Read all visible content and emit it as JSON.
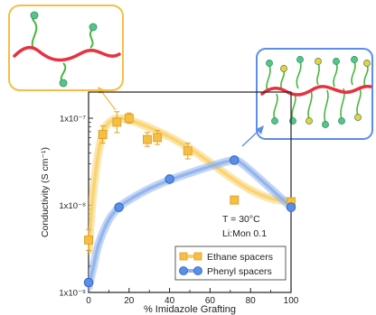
{
  "chart_data": {
    "type": "line",
    "xlabel": "% Imidazole Grafting",
    "ylabel": "Conductivity (S cm⁻¹)",
    "x_ticks": [
      "0",
      "20",
      "40",
      "60",
      "80",
      "100"
    ],
    "y_ticks": [
      "1x10⁻⁹",
      "1x10⁻⁸",
      "1x10⁻⁷"
    ],
    "xlim": [
      0,
      100
    ],
    "ylim_log10": [
      -9,
      -6.7
    ],
    "y_scale": "log",
    "annotations": {
      "temperature": "T = 30°C",
      "ratio": "Li:Mon 0.1"
    },
    "legend_position": "bottom-right",
    "series": [
      {
        "name": "Ethane spacers",
        "color": "#f6be45",
        "marker": "square",
        "x": [
          0,
          7,
          14,
          20,
          29,
          34,
          49,
          72,
          100
        ],
        "y": [
          4e-09,
          6.5e-08,
          9e-08,
          1e-07,
          5.7e-08,
          6e-08,
          4.2e-08,
          1.15e-08,
          1.1e-08
        ],
        "y_err": [
          0.12,
          0.1,
          0.12,
          0.06,
          0.08,
          0.08,
          0.09,
          0.03,
          0.03
        ]
      },
      {
        "name": "Phenyl spacers",
        "color": "#5b8ee6",
        "marker": "circle",
        "x": [
          0,
          15,
          40,
          72,
          100
        ],
        "y": [
          1.3e-09,
          9.5e-09,
          2e-08,
          3.3e-08,
          9.5e-09
        ]
      }
    ],
    "fits": [
      {
        "series": "Ethane spacers",
        "color": "#f8d26a",
        "x": [
          0,
          2,
          5,
          8,
          12,
          16,
          20,
          25,
          30,
          40,
          50,
          60,
          70,
          80,
          90,
          100
        ],
        "y": [
          3e-09,
          1.2e-08,
          4.2e-08,
          7.6e-08,
          9.6e-08,
          9.9e-08,
          9.6e-08,
          8.7e-08,
          7.8e-08,
          6.1e-08,
          4.5e-08,
          3.1e-08,
          2.1e-08,
          1.5e-08,
          1.2e-08,
          1.1e-08
        ]
      },
      {
        "series": "Phenyl spacers",
        "color": "#8fb3ec",
        "x": [
          0,
          2,
          5,
          10,
          15,
          20,
          30,
          40,
          50,
          60,
          70,
          74,
          80,
          90,
          100
        ],
        "y": [
          1.15e-09,
          1.8e-09,
          3.6e-09,
          6.8e-09,
          9.5e-09,
          1.15e-08,
          1.55e-08,
          1.95e-08,
          2.35e-08,
          2.8e-08,
          3.25e-08,
          3.2e-08,
          2.5e-08,
          1.55e-08,
          9.5e-09
        ]
      }
    ]
  },
  "insets": {
    "left": {
      "border": "#f6be45",
      "backbone": "#e8313f",
      "chain": "#46b83c",
      "head": "#56c48a"
    },
    "right": {
      "border": "#5b8ee6",
      "backbone": "#e8313f",
      "chain": "#46b83c",
      "head_green": "#56c48a",
      "head_yellow": "#f2cc3c"
    }
  }
}
